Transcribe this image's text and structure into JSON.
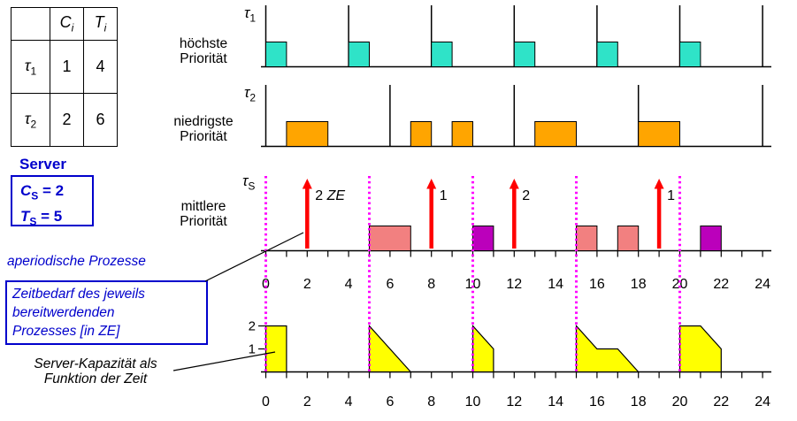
{
  "colors": {
    "blue": "#0000CC",
    "cyan": "#2FE3C8",
    "orange": "#FFA500",
    "salmon": "#F28080",
    "purple": "#BB00BB",
    "red": "#FF0000",
    "magenta": "#FF00FF",
    "yellow": "#FFFF00"
  },
  "task_table": {
    "header": {
      "c": {
        "base": "C",
        "sub": "i"
      },
      "t": {
        "base": "T",
        "sub": "i"
      }
    },
    "rows": [
      {
        "name": {
          "base": "τ",
          "sub": "1"
        },
        "c": "1",
        "t": "4"
      },
      {
        "name": {
          "base": "τ",
          "sub": "2"
        },
        "c": "2",
        "t": "6"
      }
    ]
  },
  "server": {
    "title": "Server",
    "cs": {
      "base": "C",
      "sub": "S",
      "rest": " = 2"
    },
    "ts": {
      "base": "T",
      "sub": "S",
      "rest": " = 5"
    }
  },
  "annotations": {
    "aperiodic": "aperiodische Prozesse",
    "note_lines": [
      "Zeitbedarf des jeweils",
      "bereitwerdenden",
      "Prozesses [in ZE]"
    ],
    "capacity_lines": [
      "Server-Kapazität als",
      "Funktion der Zeit"
    ]
  },
  "timelines": {
    "tau1": {
      "label": {
        "base": "τ",
        "sub": "1"
      },
      "priority": [
        "höchste",
        "Priorität"
      ],
      "releases": [
        0,
        4,
        8,
        12,
        16,
        20,
        24
      ],
      "blocks": [
        [
          0,
          1
        ],
        [
          4,
          5
        ],
        [
          8,
          9
        ],
        [
          12,
          13
        ],
        [
          16,
          17
        ],
        [
          20,
          21
        ]
      ],
      "color": "cyan"
    },
    "tau2": {
      "label": {
        "base": "τ",
        "sub": "2"
      },
      "priority": [
        "niedrigste",
        "Priorität"
      ],
      "releases": [
        0,
        6,
        12,
        18,
        24
      ],
      "blocks": [
        [
          1,
          3
        ],
        [
          7,
          8
        ],
        [
          9,
          10
        ],
        [
          13,
          15
        ],
        [
          18,
          20
        ]
      ],
      "color": "orange"
    },
    "tauS": {
      "label": {
        "base": "τ",
        "sub": "S"
      },
      "priority": [
        "mittlere",
        "Priorität"
      ],
      "replenish_times": [
        0,
        5,
        10,
        15,
        20
      ],
      "arrivals": [
        {
          "t": 2,
          "amount": "2",
          "unit": "ZE"
        },
        {
          "t": 8,
          "amount": "1",
          "unit": ""
        },
        {
          "t": 12,
          "amount": "2",
          "unit": ""
        },
        {
          "t": 19,
          "amount": "1",
          "unit": ""
        }
      ],
      "blocks": [
        {
          "from": 5,
          "to": 7,
          "color": "salmon"
        },
        {
          "from": 10,
          "to": 11,
          "color": "purple"
        },
        {
          "from": 15,
          "to": 16,
          "color": "salmon"
        },
        {
          "from": 17,
          "to": 18,
          "color": "salmon"
        },
        {
          "from": 21,
          "to": 22,
          "color": "purple"
        }
      ]
    }
  },
  "axis": {
    "min": 0,
    "max": 24,
    "labels": [
      "0",
      "2",
      "4",
      "6",
      "8",
      "10",
      "12",
      "14",
      "16",
      "18",
      "20",
      "22",
      "24"
    ]
  },
  "capacity_chart": {
    "type": "area",
    "ylabels": [
      "2",
      "1"
    ],
    "ymax": 2,
    "color": "yellow",
    "polygons": [
      [
        [
          0,
          0
        ],
        [
          0,
          2
        ],
        [
          1,
          2
        ],
        [
          1,
          0
        ]
      ],
      [
        [
          5,
          0
        ],
        [
          5,
          2
        ],
        [
          7,
          0
        ]
      ],
      [
        [
          10,
          0
        ],
        [
          10,
          2
        ],
        [
          11,
          1
        ],
        [
          11,
          0
        ]
      ],
      [
        [
          15,
          0
        ],
        [
          15,
          2
        ],
        [
          16,
          1
        ],
        [
          17,
          1
        ],
        [
          18,
          0
        ]
      ],
      [
        [
          20,
          0
        ],
        [
          20,
          2
        ],
        [
          21,
          2
        ],
        [
          22,
          1
        ],
        [
          22,
          0
        ]
      ]
    ]
  }
}
